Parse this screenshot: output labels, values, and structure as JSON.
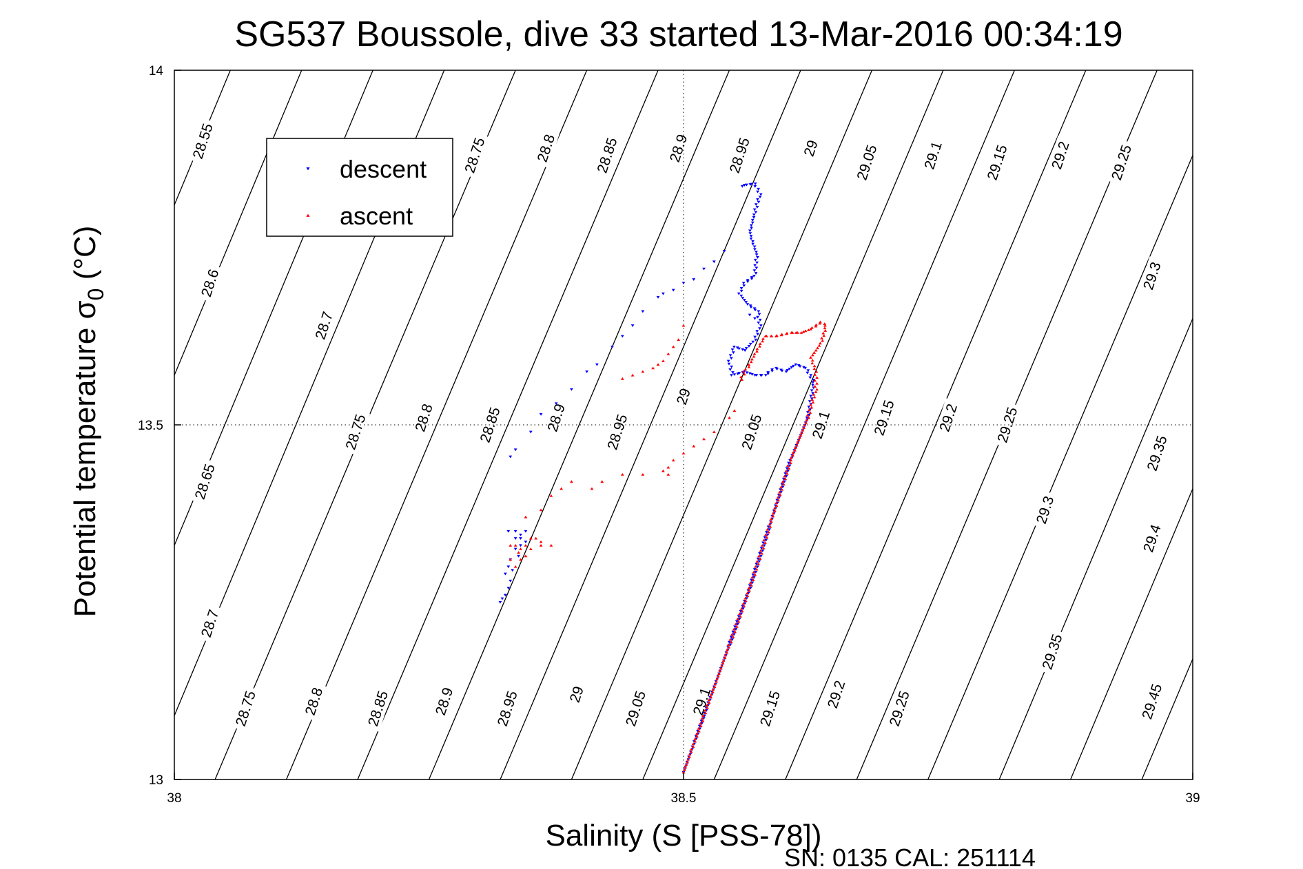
{
  "chart_data": {
    "type": "scatter",
    "title": "SG537 Boussole, dive 33 started 13-Mar-2016 00:34:19",
    "xlabel": "Salinity (S [PSS-78])",
    "ylabel_main": "Potential temperature σ",
    "ylabel_sub": "0",
    "ylabel_unit": " (°C)",
    "xlim": [
      38,
      39
    ],
    "ylim": [
      13,
      14
    ],
    "xticks": [
      38,
      38.5,
      39
    ],
    "xtick_labels": [
      "38",
      "38.5",
      "39"
    ],
    "yticks": [
      13,
      13.5,
      14
    ],
    "ytick_labels": [
      "13",
      "13.5",
      "14"
    ],
    "grid": true,
    "legend_position": "top-left",
    "footer": "SN: 0135  CAL: 251114",
    "colors": {
      "descent": "#0000ff",
      "ascent": "#ff0000",
      "axis": "#000000"
    },
    "contours": [
      {
        "label": "28.55",
        "x0": 38.0,
        "y0": 13.81,
        "x1": 38.055,
        "y1": 14.0
      },
      {
        "label": "28.6",
        "x0": 38.0,
        "y0": 13.57,
        "x1": 38.125,
        "y1": 14.0
      },
      {
        "label": "28.65",
        "x0": 38.0,
        "y0": 13.33,
        "x1": 38.195,
        "y1": 14.0
      },
      {
        "label": "28.7",
        "x0": 38.0,
        "y0": 13.09,
        "x1": 38.265,
        "y1": 14.0
      },
      {
        "label": "28.75",
        "x0": 38.04,
        "y0": 13.0,
        "x1": 38.335,
        "y1": 14.0
      },
      {
        "label": "28.8",
        "x0": 38.11,
        "y0": 13.0,
        "x1": 38.405,
        "y1": 14.0
      },
      {
        "label": "28.85",
        "x0": 38.18,
        "y0": 13.0,
        "x1": 38.475,
        "y1": 14.0
      },
      {
        "label": "28.9",
        "x0": 38.25,
        "y0": 13.0,
        "x1": 38.545,
        "y1": 14.0
      },
      {
        "label": "28.95",
        "x0": 38.32,
        "y0": 13.0,
        "x1": 38.615,
        "y1": 14.0
      },
      {
        "label": "29",
        "x0": 38.39,
        "y0": 13.0,
        "x1": 38.685,
        "y1": 14.0
      },
      {
        "label": "29.05",
        "x0": 38.46,
        "y0": 13.0,
        "x1": 38.755,
        "y1": 14.0
      },
      {
        "label": "29.1",
        "x0": 38.53,
        "y0": 13.0,
        "x1": 38.825,
        "y1": 14.0
      },
      {
        "label": "29.15",
        "x0": 38.6,
        "y0": 13.0,
        "x1": 38.895,
        "y1": 14.0
      },
      {
        "label": "29.2",
        "x0": 38.67,
        "y0": 13.0,
        "x1": 38.965,
        "y1": 14.0
      },
      {
        "label": "29.25",
        "x0": 38.74,
        "y0": 13.0,
        "x1": 39.0,
        "y1": 13.88
      },
      {
        "label": "29.3",
        "x0": 38.81,
        "y0": 13.0,
        "x1": 39.0,
        "y1": 13.65
      },
      {
        "label": "29.35",
        "x0": 38.88,
        "y0": 13.0,
        "x1": 39.0,
        "y1": 13.41
      },
      {
        "label": "29.4",
        "x0": 38.95,
        "y0": 13.0,
        "x1": 39.0,
        "y1": 13.17
      }
    ],
    "contour_labels": [
      {
        "text": "28.55",
        "x": 38.028,
        "y": 13.9
      },
      {
        "text": "28.75",
        "x": 38.295,
        "y": 13.88
      },
      {
        "text": "28.8",
        "x": 38.365,
        "y": 13.89
      },
      {
        "text": "28.85",
        "x": 38.425,
        "y": 13.88
      },
      {
        "text": "28.9",
        "x": 38.495,
        "y": 13.89
      },
      {
        "text": "28.95",
        "x": 38.555,
        "y": 13.88
      },
      {
        "text": "29",
        "x": 38.625,
        "y": 13.89
      },
      {
        "text": "29.05",
        "x": 38.68,
        "y": 13.87
      },
      {
        "text": "29.1",
        "x": 38.745,
        "y": 13.88
      },
      {
        "text": "29.15",
        "x": 38.808,
        "y": 13.87
      },
      {
        "text": "29.2",
        "x": 38.87,
        "y": 13.88
      },
      {
        "text": "29.25",
        "x": 38.93,
        "y": 13.87
      },
      {
        "text": "28.6",
        "x": 38.035,
        "y": 13.7
      },
      {
        "text": "28.7",
        "x": 38.147,
        "y": 13.64
      },
      {
        "text": "29.3",
        "x": 38.96,
        "y": 13.71
      },
      {
        "text": "29.35",
        "x": 38.965,
        "y": 13.46
      },
      {
        "text": "28.75",
        "x": 38.178,
        "y": 13.49
      },
      {
        "text": "28.8",
        "x": 38.245,
        "y": 13.51
      },
      {
        "text": "28.85",
        "x": 38.31,
        "y": 13.5
      },
      {
        "text": "28.9",
        "x": 38.375,
        "y": 13.51
      },
      {
        "text": "28.95",
        "x": 38.435,
        "y": 13.49
      },
      {
        "text": "29",
        "x": 38.5,
        "y": 13.54
      },
      {
        "text": "29.05",
        "x": 38.567,
        "y": 13.49
      },
      {
        "text": "29.1",
        "x": 38.635,
        "y": 13.5
      },
      {
        "text": "29.15",
        "x": 38.697,
        "y": 13.51
      },
      {
        "text": "29.2",
        "x": 38.76,
        "y": 13.51
      },
      {
        "text": "29.25",
        "x": 38.818,
        "y": 13.5
      },
      {
        "text": "28.65",
        "x": 38.03,
        "y": 13.42
      },
      {
        "text": "29.3",
        "x": 38.855,
        "y": 13.38
      },
      {
        "text": "29.4",
        "x": 38.96,
        "y": 13.34
      },
      {
        "text": "28.7",
        "x": 38.035,
        "y": 13.22
      },
      {
        "text": "29.35",
        "x": 38.862,
        "y": 13.18
      },
      {
        "text": "28.75",
        "x": 38.07,
        "y": 13.1
      },
      {
        "text": "28.8",
        "x": 38.137,
        "y": 13.11
      },
      {
        "text": "28.85",
        "x": 38.2,
        "y": 13.1
      },
      {
        "text": "28.9",
        "x": 38.265,
        "y": 13.11
      },
      {
        "text": "28.95",
        "x": 38.327,
        "y": 13.1
      },
      {
        "text": "29",
        "x": 38.395,
        "y": 13.12
      },
      {
        "text": "29.05",
        "x": 38.453,
        "y": 13.1
      },
      {
        "text": "29.1",
        "x": 38.518,
        "y": 13.11
      },
      {
        "text": "29.15",
        "x": 38.585,
        "y": 13.1
      },
      {
        "text": "29.2",
        "x": 38.65,
        "y": 13.12
      },
      {
        "text": "29.25",
        "x": 38.712,
        "y": 13.1
      },
      {
        "text": "29.45",
        "x": 38.96,
        "y": 13.11
      }
    ],
    "series": [
      {
        "name": "descent",
        "marker": "triangle-down",
        "polyline": [
          [
            38.5,
            13.01
          ],
          [
            38.52,
            13.09
          ],
          [
            38.545,
            13.19
          ],
          [
            38.565,
            13.27
          ],
          [
            38.585,
            13.36
          ],
          [
            38.605,
            13.45
          ],
          [
            38.622,
            13.51
          ],
          [
            38.628,
            13.56
          ],
          [
            38.62,
            13.58
          ],
          [
            38.61,
            13.585
          ],
          [
            38.6,
            13.575
          ],
          [
            38.59,
            13.58
          ],
          [
            38.58,
            13.57
          ],
          [
            38.57,
            13.57
          ],
          [
            38.56,
            13.575
          ],
          [
            38.548,
            13.57
          ],
          [
            38.545,
            13.59
          ],
          [
            38.55,
            13.61
          ],
          [
            38.56,
            13.605
          ],
          [
            38.57,
            13.62
          ],
          [
            38.575,
            13.64
          ],
          [
            38.573,
            13.66
          ],
          [
            38.563,
            13.67
          ],
          [
            38.555,
            13.685
          ],
          [
            38.56,
            13.7
          ],
          [
            38.57,
            13.71
          ],
          [
            38.572,
            13.74
          ],
          [
            38.565,
            13.77
          ],
          [
            38.57,
            13.8
          ],
          [
            38.575,
            13.825
          ],
          [
            38.57,
            13.84
          ],
          [
            38.56,
            13.838
          ],
          [
            38.555,
            13.835
          ]
        ],
        "scatter": [
          [
            38.54,
            13.745
          ],
          [
            38.53,
            13.73
          ],
          [
            38.52,
            13.72
          ],
          [
            38.51,
            13.705
          ],
          [
            38.5,
            13.7
          ],
          [
            38.49,
            13.69
          ],
          [
            38.48,
            13.685
          ],
          [
            38.475,
            13.68
          ],
          [
            38.46,
            13.66
          ],
          [
            38.45,
            13.64
          ],
          [
            38.44,
            13.625
          ],
          [
            38.43,
            13.61
          ],
          [
            38.415,
            13.585
          ],
          [
            38.405,
            13.575
          ],
          [
            38.39,
            13.55
          ],
          [
            38.375,
            13.53
          ],
          [
            38.36,
            13.515
          ],
          [
            38.35,
            13.49
          ],
          [
            38.335,
            13.465
          ],
          [
            38.33,
            13.455
          ],
          [
            38.565,
            13.655
          ],
          [
            38.57,
            13.65
          ]
        ],
        "cluster": [
          [
            38.328,
            13.35
          ],
          [
            38.335,
            13.35
          ],
          [
            38.34,
            13.34
          ],
          [
            38.34,
            13.33
          ],
          [
            38.335,
            13.325
          ],
          [
            38.345,
            13.335
          ],
          [
            38.338,
            13.315
          ],
          [
            38.33,
            13.31
          ],
          [
            38.328,
            13.3
          ],
          [
            38.325,
            13.29
          ],
          [
            38.332,
            13.295
          ],
          [
            38.33,
            13.28
          ],
          [
            38.328,
            13.27
          ],
          [
            38.325,
            13.26
          ],
          [
            38.322,
            13.255
          ],
          [
            38.32,
            13.25
          ],
          [
            38.335,
            13.34
          ],
          [
            38.34,
            13.345
          ],
          [
            38.345,
            13.35
          ]
        ]
      },
      {
        "name": "ascent",
        "marker": "triangle-up",
        "polyline": [
          [
            38.5,
            13.01
          ],
          [
            38.52,
            13.09
          ],
          [
            38.545,
            13.19
          ],
          [
            38.565,
            13.27
          ],
          [
            38.585,
            13.36
          ],
          [
            38.605,
            13.45
          ],
          [
            38.622,
            13.51
          ],
          [
            38.63,
            13.55
          ],
          [
            38.63,
            13.575
          ],
          [
            38.625,
            13.595
          ],
          [
            38.635,
            13.615
          ],
          [
            38.64,
            13.64
          ],
          [
            38.635,
            13.645
          ],
          [
            38.625,
            13.635
          ],
          [
            38.615,
            13.63
          ],
          [
            38.605,
            13.63
          ],
          [
            38.59,
            13.625
          ],
          [
            38.58,
            13.625
          ],
          [
            38.57,
            13.6
          ],
          [
            38.565,
            13.585
          ],
          [
            38.56,
            13.575
          ],
          [
            38.555,
            13.56
          ]
        ],
        "scatter": [
          [
            38.5,
            13.64
          ],
          [
            38.495,
            13.62
          ],
          [
            38.49,
            13.61
          ],
          [
            38.485,
            13.6
          ],
          [
            38.48,
            13.59
          ],
          [
            38.475,
            13.585
          ],
          [
            38.47,
            13.58
          ],
          [
            38.46,
            13.575
          ],
          [
            38.45,
            13.57
          ],
          [
            38.44,
            13.565
          ],
          [
            38.485,
            13.44
          ],
          [
            38.49,
            13.45
          ],
          [
            38.5,
            13.46
          ],
          [
            38.51,
            13.47
          ],
          [
            38.52,
            13.48
          ],
          [
            38.53,
            13.49
          ],
          [
            38.545,
            13.51
          ],
          [
            38.55,
            13.52
          ],
          [
            38.485,
            13.43
          ],
          [
            38.48,
            13.435
          ],
          [
            38.46,
            13.43
          ],
          [
            38.44,
            13.43
          ],
          [
            38.42,
            13.42
          ],
          [
            38.41,
            13.41
          ],
          [
            38.39,
            13.42
          ],
          [
            38.38,
            13.41
          ],
          [
            38.37,
            13.4
          ],
          [
            38.36,
            13.38
          ],
          [
            38.345,
            13.37
          ],
          [
            38.35,
            13.34
          ],
          [
            38.36,
            13.33
          ],
          [
            38.37,
            13.33
          ]
        ],
        "cluster": [
          [
            38.33,
            13.33
          ],
          [
            38.335,
            13.33
          ],
          [
            38.34,
            13.325
          ],
          [
            38.345,
            13.33
          ],
          [
            38.35,
            13.325
          ],
          [
            38.345,
            13.315
          ],
          [
            38.34,
            13.31
          ],
          [
            38.335,
            13.3
          ],
          [
            38.33,
            13.31
          ],
          [
            38.338,
            13.32
          ],
          [
            38.355,
            13.34
          ],
          [
            38.36,
            13.335
          ]
        ]
      }
    ]
  }
}
